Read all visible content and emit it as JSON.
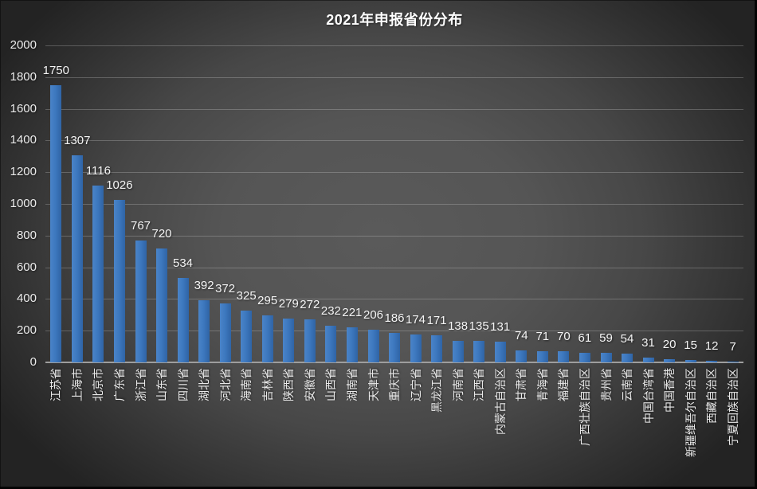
{
  "chart_data": {
    "type": "bar",
    "title": "2021年申报省份分布",
    "categories": [
      "江苏省",
      "上海市",
      "北京市",
      "广东省",
      "浙江省",
      "山东省",
      "四川省",
      "湖北省",
      "河北省",
      "海南省",
      "吉林省",
      "陕西省",
      "安徽省",
      "山西省",
      "湖南省",
      "天津市",
      "重庆市",
      "辽宁省",
      "黑龙江省",
      "河南省",
      "江西省",
      "内蒙古自治区",
      "甘肃省",
      "青海省",
      "福建省",
      "广西壮族自治区",
      "贵州省",
      "云南省",
      "中国台湾省",
      "中国香港",
      "新疆维吾尔自治区",
      "西藏自治区",
      "宁夏回族自治区"
    ],
    "values": [
      1750,
      1307,
      1116,
      1026,
      767,
      720,
      534,
      392,
      372,
      325,
      295,
      279,
      272,
      232,
      221,
      206,
      186,
      174,
      171,
      138,
      135,
      131,
      74,
      71,
      70,
      61,
      59,
      54,
      31,
      20,
      15,
      12,
      7
    ],
    "xlabel": "",
    "ylabel": "",
    "ylim": [
      0,
      2000
    ],
    "ytick_step": 200,
    "grid": "horizontal",
    "legend_position": "none",
    "data_labels": "outside-end",
    "colors": {
      "bar": "#3d78bf",
      "text": "#ececec",
      "title_text": "#ffffff",
      "gridline": "rgba(255,255,255,0.22)",
      "axis_line": "#9e9e9e",
      "background_center": "#5a5a5a",
      "background_corner": "#232323"
    }
  }
}
